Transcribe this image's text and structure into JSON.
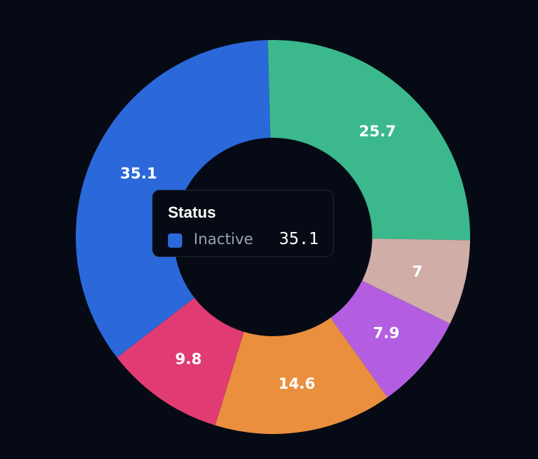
{
  "chart_data": {
    "type": "pie",
    "slices": [
      {
        "value": 25.7,
        "label": "25.7",
        "color": "#3bb98d"
      },
      {
        "value": 7,
        "label": "7",
        "color": "#d0ada6"
      },
      {
        "value": 7.9,
        "label": "7.9",
        "color": "#b35ee0"
      },
      {
        "value": 14.6,
        "label": "14.6",
        "color": "#e98f3e"
      },
      {
        "value": 9.8,
        "label": "9.8",
        "color": "#e03b72"
      },
      {
        "value": 35.1,
        "label": "35.1",
        "color": "#2b68d9"
      }
    ],
    "donut": true,
    "background": "#050a14"
  },
  "tooltip": {
    "title": "Status",
    "series_name": "Inactive",
    "value": "35.1",
    "color": "#2b68d9"
  }
}
